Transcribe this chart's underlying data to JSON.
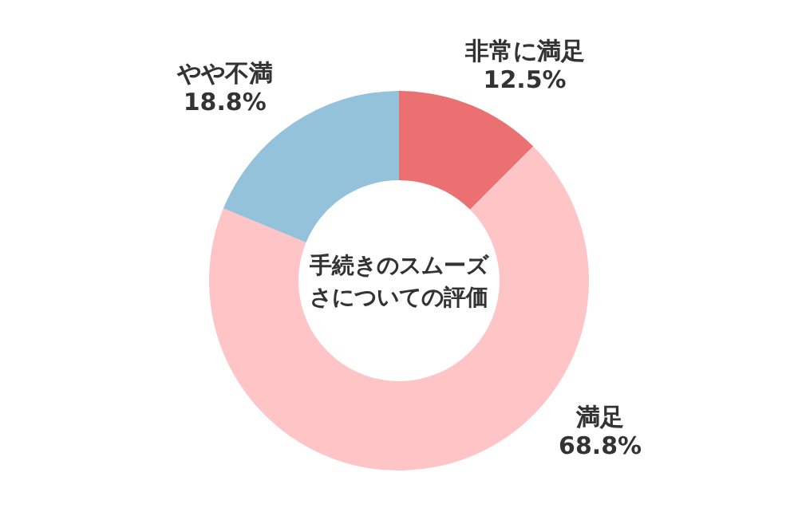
{
  "chart_data": {
    "type": "donut",
    "title": "手続きのスムーズさについての評価",
    "categories": [
      "非常に満足",
      "満足",
      "やや不満"
    ],
    "values": [
      12.5,
      68.8,
      18.8
    ],
    "value_labels": [
      "12.5%",
      "68.8%",
      "18.8%"
    ],
    "colors": [
      "#ea7071",
      "#fec4c6",
      "#93c2da"
    ]
  }
}
